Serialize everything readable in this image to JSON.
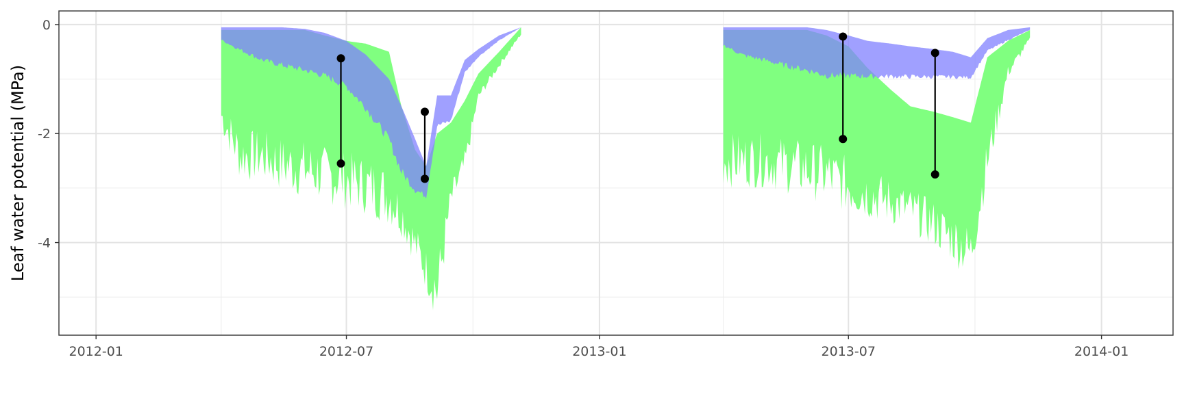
{
  "chart_data": {
    "type": "area",
    "title": "",
    "xlabel": "",
    "ylabel": "Leaf water potential (MPa)",
    "x_axis": {
      "type": "date",
      "range": [
        "2011-12-05",
        "2014-02-22"
      ],
      "ticks": [
        {
          "date": "2012-01-01",
          "label": "2012-01"
        },
        {
          "date": "2012-07-01",
          "label": "2012-07"
        },
        {
          "date": "2013-01-01",
          "label": "2013-01"
        },
        {
          "date": "2013-07-01",
          "label": "2013-07"
        },
        {
          "date": "2014-01-01",
          "label": "2014-01"
        }
      ],
      "minor_ticks": [
        "2012-04-01",
        "2012-10-01",
        "2013-04-01",
        "2013-10-01"
      ]
    },
    "y_axis": {
      "range": [
        -5.7,
        0.25
      ],
      "ticks": [
        0,
        -2,
        -4
      ],
      "tick_labels": [
        "0",
        "-2",
        "-4"
      ],
      "minor_ticks": [
        -1,
        -3,
        -5
      ]
    },
    "grid": true,
    "legend": "none",
    "colors": {
      "green": "#80ff80",
      "blue": "#8080ff",
      "overlap": "#4080c0",
      "segments": "#000000"
    },
    "series": [
      {
        "color": "green",
        "type": "range",
        "x": [
          "2012-04-01",
          "2012-04-15",
          "2012-05-01",
          "2012-05-15",
          "2012-06-01",
          "2012-06-15",
          "2012-07-01",
          "2012-07-15",
          "2012-08-01",
          "2012-08-10",
          "2012-08-20",
          "2012-08-28",
          "2012-09-05",
          "2012-09-15",
          "2012-09-25",
          "2012-10-05",
          "2012-10-20",
          "2012-11-05"
        ],
        "upper": [
          -0.1,
          -0.1,
          -0.1,
          -0.1,
          -0.1,
          -0.2,
          -0.3,
          -0.35,
          -0.5,
          -1.5,
          -2.3,
          -2.6,
          -2.0,
          -1.8,
          -1.4,
          -0.9,
          -0.5,
          -0.05
        ],
        "lower": [
          -2.0,
          -2.9,
          -2.9,
          -3.1,
          -3.2,
          -3.3,
          -3.4,
          -3.5,
          -3.7,
          -3.9,
          -4.4,
          -4.9,
          -5.5,
          -3.5,
          -2.8,
          -1.4,
          -0.8,
          -0.2
        ]
      },
      {
        "color": "blue",
        "type": "range",
        "x": [
          "2012-04-01",
          "2012-04-15",
          "2012-05-01",
          "2012-05-15",
          "2012-06-01",
          "2012-06-15",
          "2012-07-01",
          "2012-07-15",
          "2012-08-01",
          "2012-08-10",
          "2012-08-20",
          "2012-08-28",
          "2012-09-05",
          "2012-09-15",
          "2012-09-25",
          "2012-10-05",
          "2012-10-20",
          "2012-11-05"
        ],
        "upper": [
          -0.05,
          -0.05,
          -0.05,
          -0.05,
          -0.08,
          -0.15,
          -0.3,
          -0.55,
          -1.0,
          -1.5,
          -2.1,
          -2.6,
          -1.3,
          -1.3,
          -0.65,
          -0.45,
          -0.2,
          -0.05
        ],
        "lower": [
          -0.3,
          -0.5,
          -0.7,
          -0.8,
          -0.9,
          -1.0,
          -1.2,
          -1.6,
          -2.2,
          -2.8,
          -3.1,
          -3.2,
          -1.9,
          -1.8,
          -0.9,
          -0.6,
          -0.3,
          -0.05
        ]
      },
      {
        "color": "green",
        "type": "range",
        "x": [
          "2013-04-01",
          "2013-04-15",
          "2013-05-01",
          "2013-05-15",
          "2013-06-01",
          "2013-06-15",
          "2013-07-01",
          "2013-07-15",
          "2013-08-01",
          "2013-08-15",
          "2013-09-01",
          "2013-09-15",
          "2013-09-28",
          "2013-10-10",
          "2013-10-25",
          "2013-11-10"
        ],
        "upper": [
          -0.1,
          -0.1,
          -0.1,
          -0.1,
          -0.1,
          -0.2,
          -0.4,
          -0.8,
          -1.2,
          -1.5,
          -1.6,
          -1.7,
          -1.8,
          -0.6,
          -0.3,
          -0.1
        ],
        "lower": [
          -3.0,
          -3.0,
          -3.0,
          -3.1,
          -3.2,
          -3.3,
          -3.5,
          -3.6,
          -3.7,
          -3.8,
          -4.1,
          -4.4,
          -4.7,
          -2.9,
          -1.0,
          -0.3
        ]
      },
      {
        "color": "blue",
        "type": "range",
        "x": [
          "2013-04-01",
          "2013-04-15",
          "2013-05-01",
          "2013-05-15",
          "2013-06-01",
          "2013-06-15",
          "2013-07-01",
          "2013-07-15",
          "2013-08-01",
          "2013-08-15",
          "2013-09-01",
          "2013-09-15",
          "2013-09-28",
          "2013-10-10",
          "2013-10-25",
          "2013-11-10"
        ],
        "upper": [
          -0.05,
          -0.05,
          -0.05,
          -0.05,
          -0.05,
          -0.1,
          -0.2,
          -0.3,
          -0.35,
          -0.4,
          -0.45,
          -0.5,
          -0.6,
          -0.25,
          -0.1,
          -0.05
        ],
        "lower": [
          -0.4,
          -0.6,
          -0.7,
          -0.8,
          -0.9,
          -1.0,
          -1.0,
          -1.0,
          -1.0,
          -1.0,
          -1.0,
          -1.0,
          -1.0,
          -0.5,
          -0.3,
          -0.1
        ]
      }
    ],
    "segments": [
      {
        "x": "2012-06-27",
        "y_top": -0.62,
        "y_bottom": -2.55
      },
      {
        "x": "2012-08-27",
        "y_top": -1.6,
        "y_bottom": -2.83
      },
      {
        "x": "2013-06-27",
        "y_top": -0.22,
        "y_bottom": -2.1
      },
      {
        "x": "2013-09-02",
        "y_top": -0.52,
        "y_bottom": -2.75
      }
    ]
  }
}
